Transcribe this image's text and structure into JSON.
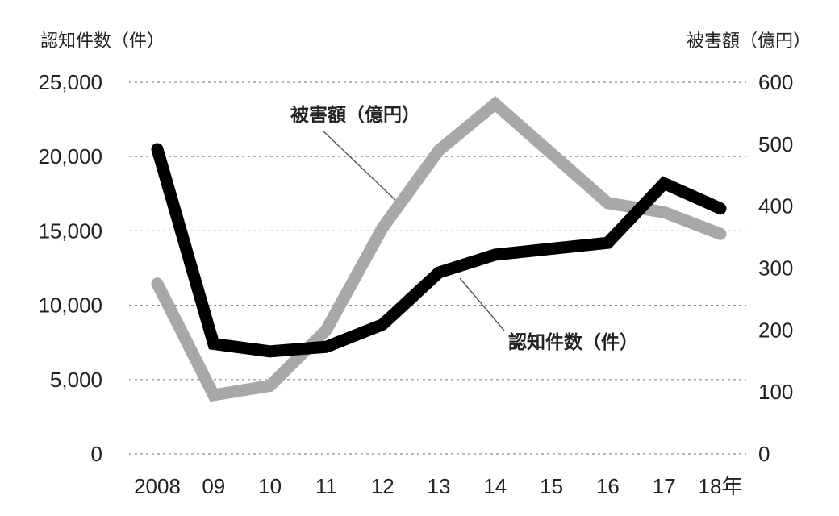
{
  "chart_data": {
    "type": "line",
    "categories": [
      "2008",
      "09",
      "10",
      "11",
      "12",
      "13",
      "14",
      "15",
      "16",
      "17",
      "18年"
    ],
    "series": [
      {
        "name": "認知件数（件）",
        "axis": "left",
        "color": "#000000",
        "values": [
          20500,
          7400,
          6900,
          7200,
          8700,
          12200,
          13400,
          13800,
          14200,
          18200,
          16500
        ]
      },
      {
        "name": "被害額（億円）",
        "axis": "right",
        "color": "#a8a8a8",
        "values": [
          275,
          95,
          110,
          200,
          365,
          490,
          565,
          485,
          405,
          390,
          355
        ]
      }
    ],
    "left_axis": {
      "label": "認知件数（件）",
      "ylim": [
        0,
        25000
      ],
      "ticks": [
        0,
        5000,
        10000,
        15000,
        20000,
        25000
      ],
      "tick_labels": [
        "0",
        "5,000",
        "10,000",
        "15,000",
        "20,000",
        "25,000"
      ]
    },
    "right_axis": {
      "label": "被害額（億円）",
      "ylim": [
        0,
        600
      ],
      "ticks": [
        0,
        100,
        200,
        300,
        400,
        500,
        600
      ],
      "tick_labels": [
        "0",
        "100",
        "200",
        "300",
        "400",
        "500",
        "600"
      ]
    },
    "grid": true,
    "legend": "direct labels on lines",
    "annotations": [
      "被害額（億円）",
      "認知件数（件）"
    ]
  }
}
